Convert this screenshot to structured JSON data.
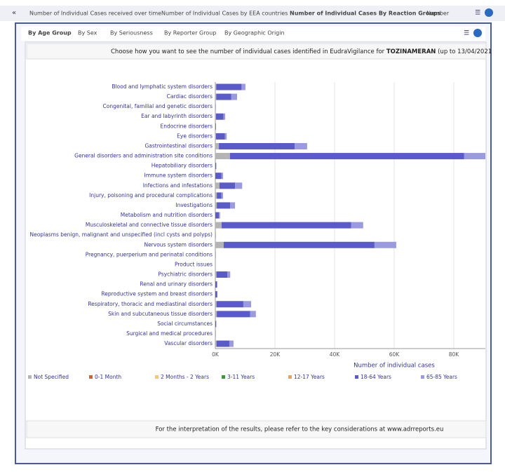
{
  "tabs": [
    "Number of Individual Cases received over time",
    "Number of Individual Cases by EEA countries",
    "Number of Individual Cases By Reaction Groups",
    "Number"
  ],
  "subtabs": [
    "By Age Group",
    "By Sex",
    "By Seriousness",
    "By Reporter Group",
    "By Geographic Origin"
  ],
  "header": {
    "text": "Choose how you want to see the number of individual cases identified in EudraVigilance for",
    "product": "TOZINAMERAN",
    "period": "(up to 13/04/2021"
  },
  "footer": "For the interpretation of the results, please refer to the key considerations at www.adrreports.eu",
  "chart_data": {
    "type": "stacked-barh",
    "x_label": "Number of individual cases",
    "categories": [
      "Blood and lymphatic system disorders",
      "Cardiac disorders",
      "Congenital, familial and genetic disorders",
      "Ear and labyrinth disorders",
      "Endocrine disorders",
      "Eye disorders",
      "Gastrointestinal disorders",
      "General disorders and administration site conditions",
      "Hepatobiliary disorders",
      "Immune system disorders",
      "Infections and infestations",
      "Injury, poisoning and procedural complications",
      "Investigations",
      "Metabolism and nutrition disorders",
      "Musculoskeletal and connective tissue disorders",
      "Neoplasms benign, malignant and unspecified (incl cysts and polyps)",
      "Nervous system disorders",
      "Pregnancy, puerperium and perinatal conditions",
      "Product issues",
      "Psychiatric disorders",
      "Renal and urinary disorders",
      "Reproductive system and breast disorders",
      "Respiratory, thoracic and mediastinal disorders",
      "Skin and subcutaneous tissue disorders",
      "Social circumstances",
      "Surgical and medical procedures",
      "Vascular disorders"
    ],
    "series": [
      {
        "name": "Not Specified",
        "color": "#b4b4b4",
        "values": [
          300,
          300,
          0,
          200,
          0,
          200,
          1200,
          4900,
          0,
          0,
          1400,
          500,
          500,
          0,
          2100,
          0,
          2800,
          0,
          0,
          400,
          0,
          0,
          400,
          500,
          0,
          0,
          400
        ]
      },
      {
        "name": "0-1 Month",
        "color": "#e05a3a",
        "values": [
          0,
          0,
          0,
          0,
          0,
          0,
          0,
          0,
          0,
          0,
          0,
          0,
          0,
          0,
          0,
          0,
          0,
          0,
          0,
          0,
          0,
          0,
          0,
          0,
          0,
          0,
          0
        ]
      },
      {
        "name": "2 Months - 2 Years",
        "color": "#f5d04a",
        "values": [
          0,
          0,
          0,
          0,
          0,
          0,
          0,
          0,
          0,
          0,
          0,
          0,
          0,
          0,
          0,
          0,
          0,
          0,
          0,
          0,
          0,
          0,
          0,
          0,
          0,
          0,
          0
        ]
      },
      {
        "name": "3-11 Years",
        "color": "#3a9a3a",
        "values": [
          0,
          0,
          0,
          0,
          0,
          0,
          0,
          0,
          0,
          0,
          0,
          0,
          0,
          0,
          0,
          0,
          0,
          0,
          0,
          0,
          0,
          0,
          0,
          0,
          0,
          0,
          0
        ]
      },
      {
        "name": "12-17 Years",
        "color": "#f0a050",
        "values": [
          0,
          0,
          0,
          0,
          0,
          0,
          0,
          0,
          0,
          0,
          0,
          0,
          0,
          0,
          0,
          0,
          0,
          0,
          0,
          0,
          0,
          0,
          0,
          0,
          0,
          0,
          0
        ]
      },
      {
        "name": "18-64 Years",
        "color": "#5a5ac8",
        "values": [
          8500,
          5000,
          100,
          2500,
          200,
          3000,
          25400,
          78600,
          300,
          2000,
          5200,
          1500,
          4500,
          1200,
          43500,
          100,
          50600,
          100,
          0,
          3600,
          500,
          600,
          9000,
          11200,
          300,
          100,
          4300
        ]
      },
      {
        "name": "65-85 Years",
        "color": "#9a9ae0",
        "values": [
          1300,
          2000,
          0,
          600,
          0,
          600,
          4200,
          7100,
          0,
          600,
          2400,
          600,
          1600,
          400,
          4000,
          0,
          7300,
          0,
          0,
          1000,
          200,
          100,
          2600,
          1900,
          0,
          0,
          1400
        ]
      }
    ],
    "xlim": [
      0,
      90600
    ],
    "xticks": [
      {
        "value": 0,
        "label": "0K"
      },
      {
        "value": 20000,
        "label": "20K"
      },
      {
        "value": 40000,
        "label": "40K"
      },
      {
        "value": 60000,
        "label": "60K"
      },
      {
        "value": 80000,
        "label": "80K"
      }
    ],
    "grid": true
  }
}
